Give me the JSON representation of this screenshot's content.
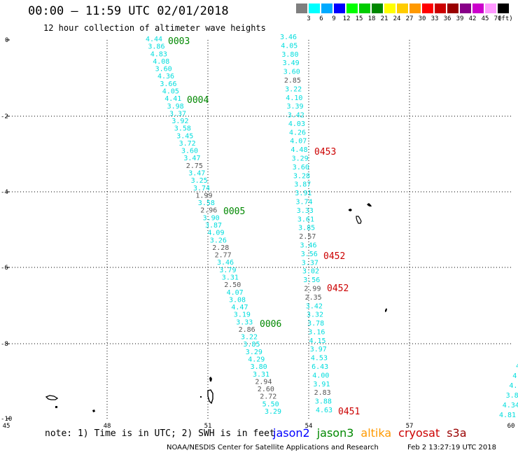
{
  "header": {
    "title": "00:00 – 11:59 UTC 02/01/2018",
    "subtitle": "12 hour collection of altimeter wave heights"
  },
  "legend": {
    "unit": "(ft)",
    "bins": [
      {
        "label": "3",
        "color": "#7f7f7f"
      },
      {
        "label": "6",
        "color": "#00ffff"
      },
      {
        "label": "9",
        "color": "#00aaff"
      },
      {
        "label": "12",
        "color": "#0000ff"
      },
      {
        "label": "15",
        "color": "#00ff00"
      },
      {
        "label": "18",
        "color": "#00cc00"
      },
      {
        "label": "21",
        "color": "#008800"
      },
      {
        "label": "24",
        "color": "#ffff00"
      },
      {
        "label": "27",
        "color": "#ffcc00"
      },
      {
        "label": "30",
        "color": "#ff9900"
      },
      {
        "label": "33",
        "color": "#ff0000"
      },
      {
        "label": "36",
        "color": "#cc0000"
      },
      {
        "label": "39",
        "color": "#990000"
      },
      {
        "label": "42",
        "color": "#880088"
      },
      {
        "label": "45",
        "color": "#cc00cc"
      },
      {
        "label": "70",
        "color": "#ff99ff"
      },
      {
        "label": "",
        "color": "#000000"
      }
    ]
  },
  "axes": {
    "lon_labels": [
      "45",
      "48",
      "51",
      "54",
      "57",
      "60"
    ],
    "lat_labels": [
      "0",
      "-2",
      "-4",
      "-6",
      "-8",
      "-10"
    ]
  },
  "colors": {
    "cyan": "#00dddd",
    "gray": "#555555",
    "jason2": "#0000ff",
    "jason3": "#008800",
    "altika": "#ff9900",
    "cryosat": "#cc0000",
    "s3a": "#990000"
  },
  "tracks": [
    {
      "x0": 208,
      "y0": 59,
      "x1": 378,
      "y1": 591,
      "values": [
        "4.44",
        "3.86",
        "4.83",
        "4.08",
        "3.60",
        "4.36",
        "3.66",
        "4.05",
        "4.41",
        "3.98",
        "3.37",
        "3.92",
        "3.58",
        "3.45",
        "3.72",
        "3.60",
        "3.47",
        "2.75",
        "3.47",
        "3.25",
        "3.74",
        "1.99",
        "3.58",
        "2.96",
        "3.90",
        "3.87",
        "4.09",
        "3.26",
        "2.28",
        "2.77",
        "3.46",
        "3.79",
        "3.31",
        "2.50",
        "4.07",
        "3.08",
        "4.47",
        "3.19",
        "3.33",
        "2.86",
        "3.22",
        "3.85",
        "3.29",
        "4.29",
        "3.80",
        "3.31",
        "2.94",
        "2.60",
        "2.72",
        "5.50",
        "3.29"
      ],
      "gray": [
        17,
        21,
        23,
        28,
        29,
        33,
        39,
        46,
        47,
        48
      ]
    },
    {
      "x0": 400,
      "y0": 56,
      "x1": 451,
      "y1": 589,
      "values": [
        "3.46",
        "4.05",
        "3.80",
        "3.49",
        "3.60",
        "2.85",
        "3.22",
        "4.10",
        "3.39",
        "3.42",
        "4.03",
        "4.26",
        "4.07",
        "4.48",
        "3.29",
        "3.60",
        "3.28",
        "3.87",
        "3.91",
        "3.74",
        "3.33",
        "3.61",
        "3.85",
        "2.57",
        "3.46",
        "3.56",
        "3.37",
        "3.02",
        "3.56",
        "2.99",
        "2.35",
        "3.42",
        "3.32",
        "3.78",
        "3.16",
        "4.15",
        "3.97",
        "4.53",
        "6.43",
        "4.00",
        "3.91",
        "2.83",
        "3.88",
        "4.63"
      ],
      "gray": [
        5,
        23,
        29,
        30,
        41
      ]
    },
    {
      "x0": 737,
      "y0": 526,
      "x1": 713,
      "y1": 596,
      "values": [
        "4.",
        "4.",
        "4.",
        "3.8",
        "4.34",
        "4.81"
      ],
      "gray": []
    }
  ],
  "passes": [
    {
      "label": "0003",
      "sat": "jason3"
    },
    {
      "label": "0004",
      "sat": "jason3"
    },
    {
      "label": "0005",
      "sat": "jason3"
    },
    {
      "label": "0006",
      "sat": "jason3"
    },
    {
      "label": "0453",
      "sat": "cryosat"
    },
    {
      "label": "0452",
      "sat": "cryosat"
    },
    {
      "label": "0452",
      "sat": "cryosat"
    },
    {
      "label": "0451",
      "sat": "cryosat"
    }
  ],
  "footer": {
    "note": "note: 1) Time is in UTC; 2) SWH is in feet",
    "satellites": [
      {
        "name": "jason2",
        "key": "jason2"
      },
      {
        "name": "jason3",
        "key": "jason3"
      },
      {
        "name": "altika",
        "key": "altika"
      },
      {
        "name": "cryosat",
        "key": "cryosat"
      },
      {
        "name": "s3a",
        "key": "s3a"
      }
    ],
    "credit": "NOAA/NESDIS Center for Satellite Applications and Research",
    "generated": "Feb  2 13:27:19 UTC 2018"
  }
}
